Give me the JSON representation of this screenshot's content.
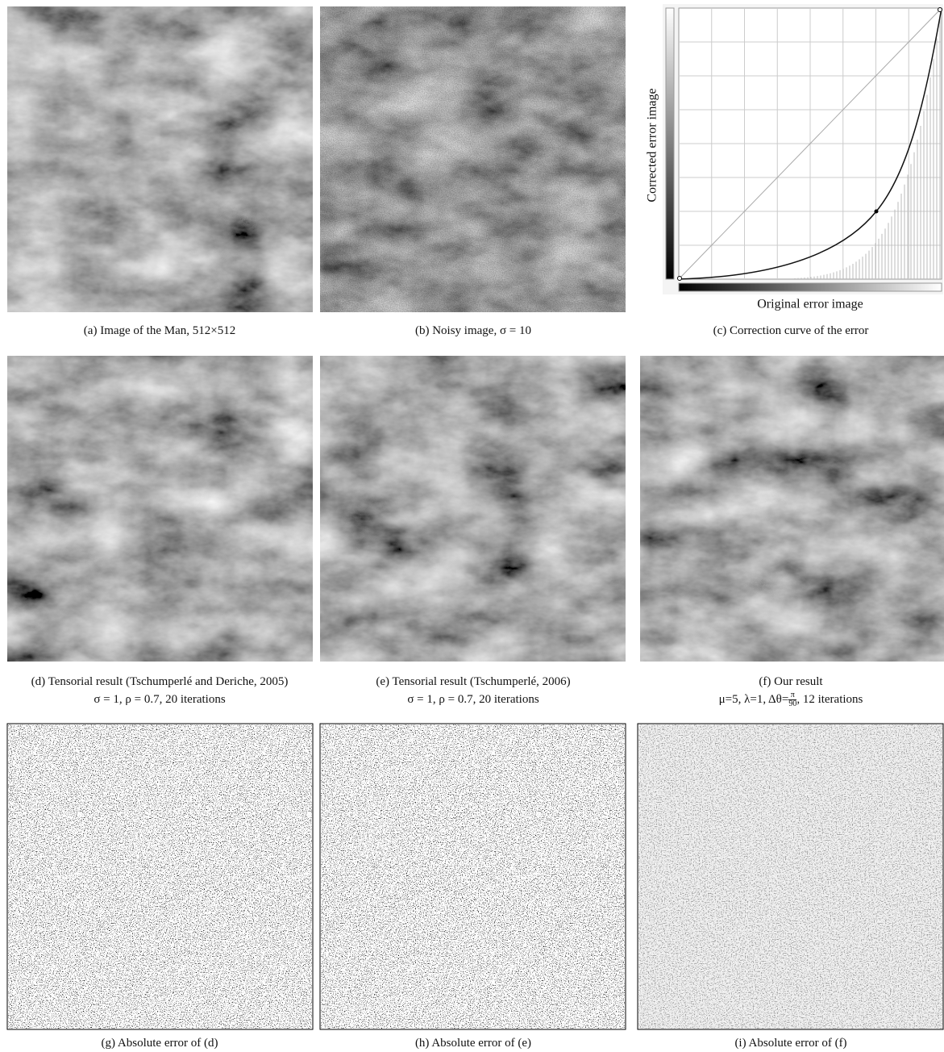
{
  "panels": [
    {
      "caption": "(a) Image of the Man, 512×512"
    },
    {
      "caption": "(b) Noisy image, σ = 10"
    },
    {
      "caption": "(c) Correction curve of the error",
      "y_label": "Corrected error image",
      "x_label": "Original error image"
    },
    {
      "caption": "(d) Tensorial result (Tschumperlé and Deriche, 2005)",
      "caption_line2": "σ = 1, ρ = 0.7, 20 iterations"
    },
    {
      "caption": "(e) Tensorial result (Tschumperlé, 2006)",
      "caption_line2": "σ = 1, ρ = 0.7, 20 iterations"
    },
    {
      "caption": "(f) Our result",
      "caption_line2_start": "μ=5, λ=1, Δθ=",
      "fraction_numerator": "π",
      "fraction_denominator": "90",
      "caption_line2_end": ", 12 iterations"
    },
    {
      "caption": "(g) Absolute error of (d)"
    },
    {
      "caption": "(h) Absolute error of (e)"
    },
    {
      "caption": "(i) Absolute error of (f)"
    }
  ]
}
